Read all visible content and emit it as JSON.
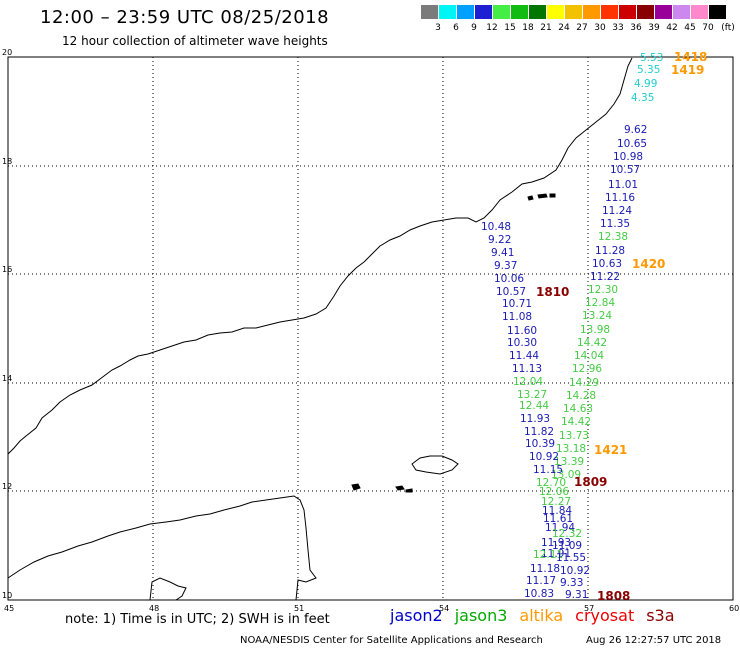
{
  "title": "12:00 – 23:59 UTC 08/25/2018",
  "subtitle": "12 hour collection of altimeter wave heights",
  "legend": {
    "unit_label": "(ft)",
    "bins": [
      {
        "label": "3",
        "color": "#7b7b7b"
      },
      {
        "label": "6",
        "color": "#00f5f5"
      },
      {
        "label": "9",
        "color": "#00a0ff"
      },
      {
        "label": "12",
        "color": "#1e1ed2"
      },
      {
        "label": "15",
        "color": "#44ee44"
      },
      {
        "label": "18",
        "color": "#11bb11"
      },
      {
        "label": "21",
        "color": "#007700"
      },
      {
        "label": "24",
        "color": "#ffff00"
      },
      {
        "label": "27",
        "color": "#f2c200"
      },
      {
        "label": "30",
        "color": "#ff9900"
      },
      {
        "label": "33",
        "color": "#ff3300"
      },
      {
        "label": "36",
        "color": "#cc0000"
      },
      {
        "label": "39",
        "color": "#880000"
      },
      {
        "label": "42",
        "color": "#990099"
      },
      {
        "label": "45",
        "color": "#cc88ee"
      },
      {
        "label": "70",
        "color": "#ff88cc"
      },
      {
        "label": "",
        "color": "#000000"
      }
    ]
  },
  "axes": {
    "lon_ticks": [
      "45",
      "48",
      "51",
      "54",
      "57",
      "60"
    ],
    "lat_ticks": [
      "20",
      "18",
      "16",
      "14",
      "12",
      "10"
    ]
  },
  "observations": [
    {
      "v": "5.53",
      "c": "#22cccc"
    },
    {
      "v": "5.35",
      "c": "#22cccc"
    },
    {
      "v": "4.99",
      "c": "#22cccc"
    },
    {
      "v": "4.35",
      "c": "#22cccc"
    },
    {
      "v": "9.62",
      "c": "#1a1ab4"
    },
    {
      "v": "10.65",
      "c": "#1a1ab4"
    },
    {
      "v": "10.98",
      "c": "#1a1ab4"
    },
    {
      "v": "10.57",
      "c": "#1a1ab4"
    },
    {
      "v": "11.01",
      "c": "#1a1ab4"
    },
    {
      "v": "11.16",
      "c": "#1a1ab4"
    },
    {
      "v": "11.24",
      "c": "#1a1ab4"
    },
    {
      "v": "11.35",
      "c": "#1a1ab4"
    },
    {
      "v": "12.38",
      "c": "#44cc44"
    },
    {
      "v": "11.28",
      "c": "#1a1ab4"
    },
    {
      "v": "10.63",
      "c": "#1a1ab4"
    },
    {
      "v": "11.22",
      "c": "#1a1ab4"
    },
    {
      "v": "12.30",
      "c": "#44cc44"
    },
    {
      "v": "12.84",
      "c": "#44cc44"
    },
    {
      "v": "13.24",
      "c": "#44cc44"
    },
    {
      "v": "13.98",
      "c": "#44cc44"
    },
    {
      "v": "14.42",
      "c": "#44cc44"
    },
    {
      "v": "14.04",
      "c": "#44cc44"
    },
    {
      "v": "12.96",
      "c": "#44cc44"
    },
    {
      "v": "14.29",
      "c": "#44cc44"
    },
    {
      "v": "14.28",
      "c": "#44cc44"
    },
    {
      "v": "14.63",
      "c": "#44cc44"
    },
    {
      "v": "14.42",
      "c": "#44cc44"
    },
    {
      "v": "13.73",
      "c": "#44cc44"
    },
    {
      "v": "13.18",
      "c": "#44cc44"
    },
    {
      "v": "13.39",
      "c": "#44cc44"
    },
    {
      "v": "13.09",
      "c": "#44cc44"
    },
    {
      "v": "10.48",
      "c": "#1a1ab4"
    },
    {
      "v": "9.22",
      "c": "#1a1ab4"
    },
    {
      "v": "9.41",
      "c": "#1a1ab4"
    },
    {
      "v": "9.37",
      "c": "#1a1ab4"
    },
    {
      "v": "10.06",
      "c": "#1a1ab4"
    },
    {
      "v": "10.57",
      "c": "#1a1ab4"
    },
    {
      "v": "10.71",
      "c": "#1a1ab4"
    },
    {
      "v": "11.08",
      "c": "#1a1ab4"
    },
    {
      "v": "11.60",
      "c": "#1a1ab4"
    },
    {
      "v": "10.30",
      "c": "#1a1ab4"
    },
    {
      "v": "11.44",
      "c": "#1a1ab4"
    },
    {
      "v": "11.13",
      "c": "#1a1ab4"
    },
    {
      "v": "12.04",
      "c": "#44cc44"
    },
    {
      "v": "13.27",
      "c": "#44cc44"
    },
    {
      "v": "12.44",
      "c": "#44cc44"
    },
    {
      "v": "11.93",
      "c": "#1a1ab4"
    },
    {
      "v": "11.82",
      "c": "#1a1ab4"
    },
    {
      "v": "10.39",
      "c": "#1a1ab4"
    },
    {
      "v": "10.92",
      "c": "#1a1ab4"
    },
    {
      "v": "11.15",
      "c": "#1a1ab4"
    },
    {
      "v": "12.70",
      "c": "#44cc44"
    },
    {
      "v": "12.06",
      "c": "#44cc44"
    },
    {
      "v": "12.27",
      "c": "#44cc44"
    },
    {
      "v": "11.84",
      "c": "#1a1ab4"
    },
    {
      "v": "11.61",
      "c": "#1a1ab4"
    },
    {
      "v": "11.94",
      "c": "#1a1ab4"
    },
    {
      "v": "12.32",
      "c": "#44cc44"
    },
    {
      "v": "11.93",
      "c": "#1a1ab4"
    },
    {
      "v": "11.91",
      "c": "#1a1ab4"
    },
    {
      "v": "11.09",
      "c": "#1a1ab4"
    },
    {
      "v": "12.11",
      "c": "#44cc44"
    },
    {
      "v": "11.55",
      "c": "#1a1ab4"
    },
    {
      "v": "11.18",
      "c": "#1a1ab4"
    },
    {
      "v": "10.92",
      "c": "#1a1ab4"
    },
    {
      "v": "11.17",
      "c": "#1a1ab4"
    },
    {
      "v": "9.33",
      "c": "#1a1ab4"
    },
    {
      "v": "10.83",
      "c": "#1a1ab4"
    },
    {
      "v": "9.31",
      "c": "#1a1ab4"
    }
  ],
  "passes": [
    {
      "id": "1418",
      "c": "#ff9900"
    },
    {
      "id": "1419",
      "c": "#ff9900"
    },
    {
      "id": "1420",
      "c": "#ff9900"
    },
    {
      "id": "1421",
      "c": "#ff9900"
    },
    {
      "id": "1810",
      "c": "#880000"
    },
    {
      "id": "1809",
      "c": "#880000"
    },
    {
      "id": "1808",
      "c": "#880000"
    }
  ],
  "note": "note:  1) Time is in UTC;  2) SWH is in feet",
  "satellites": [
    {
      "name": "jason2",
      "color": "#0000cc"
    },
    {
      "name": "jason3",
      "color": "#00aa00"
    },
    {
      "name": "altika",
      "color": "#ff9900"
    },
    {
      "name": "cryosat",
      "color": "#ee0000"
    },
    {
      "name": "s3a",
      "color": "#880000"
    }
  ],
  "footer": "NOAA/NESDIS Center for Satellite Applications and Research",
  "stamp": "Aug 26 12:27:57 UTC 2018"
}
